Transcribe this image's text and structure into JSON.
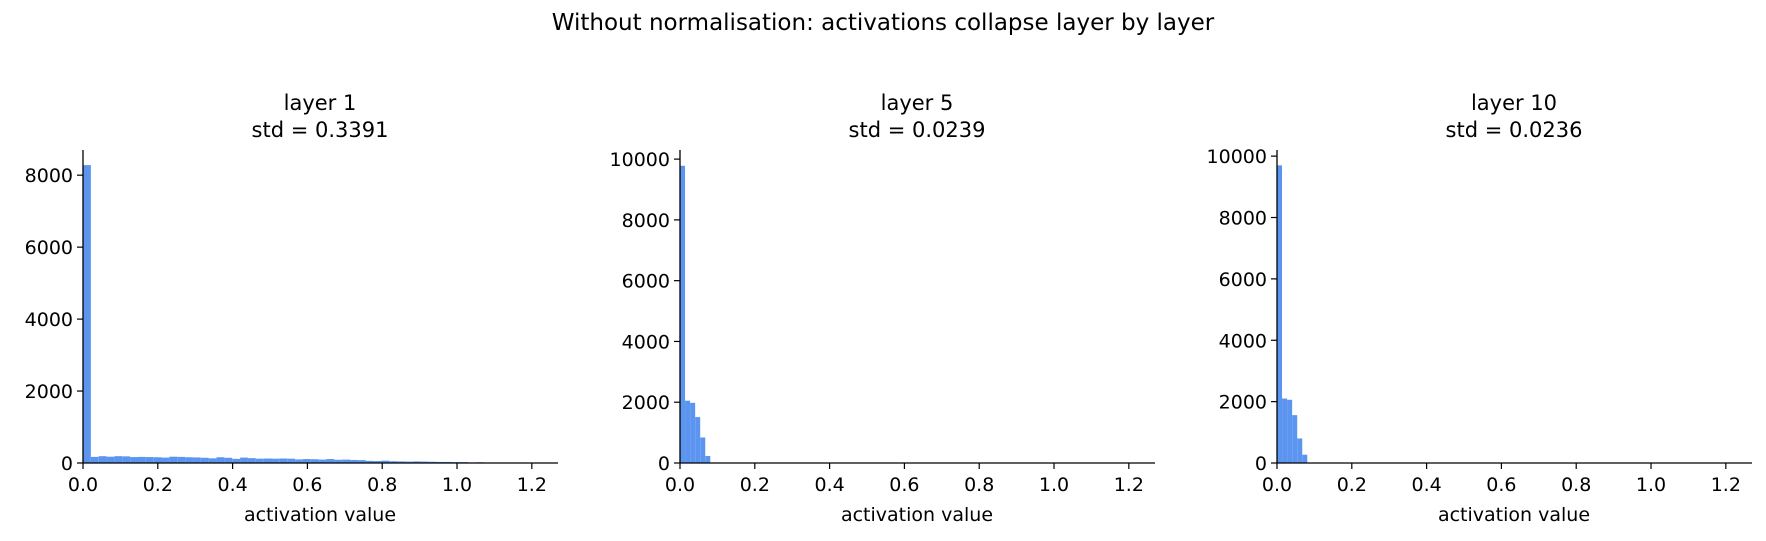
{
  "figure": {
    "title": "Without normalisation: activations collapse layer by layer"
  },
  "colors": {
    "bar": "#5b95f0",
    "axis": "#000000"
  },
  "chart_data": [
    {
      "type": "bar",
      "title": "layer 1\nstd = 0.3391",
      "xlabel": "activation value",
      "ylabel": "",
      "xlim": [
        0.0,
        1.27
      ],
      "ylim": [
        0,
        8700
      ],
      "xticks": [
        "0.0",
        "0.2",
        "0.4",
        "0.6",
        "0.8",
        "1.0",
        "1.2"
      ],
      "yticks": [
        "0",
        "2000",
        "4000",
        "6000",
        "8000"
      ],
      "grid": false,
      "bin_width": 0.021,
      "bin_starts": [
        0.0,
        0.021,
        0.042,
        0.063,
        0.084,
        0.105,
        0.126,
        0.147,
        0.168,
        0.189,
        0.21,
        0.231,
        0.252,
        0.273,
        0.294,
        0.315,
        0.336,
        0.357,
        0.378,
        0.399,
        0.42,
        0.441,
        0.462,
        0.483,
        0.504,
        0.525,
        0.546,
        0.567,
        0.588,
        0.609,
        0.63,
        0.651,
        0.672,
        0.693,
        0.714,
        0.735,
        0.756,
        0.777,
        0.798,
        0.819,
        0.84,
        0.861,
        0.882,
        0.903,
        0.924,
        0.945,
        0.966,
        0.987,
        1.008,
        1.029,
        1.05,
        1.071
      ],
      "values": [
        8280,
        170,
        190,
        175,
        190,
        185,
        165,
        170,
        165,
        160,
        150,
        175,
        170,
        160,
        155,
        145,
        130,
        160,
        145,
        115,
        150,
        135,
        120,
        125,
        120,
        125,
        120,
        100,
        110,
        105,
        95,
        110,
        90,
        95,
        85,
        80,
        60,
        55,
        65,
        50,
        45,
        40,
        45,
        40,
        35,
        30,
        30,
        25,
        25,
        15,
        20,
        12
      ]
    },
    {
      "type": "bar",
      "title": "layer 5\nstd = 0.0239",
      "xlabel": "activation value",
      "ylabel": "",
      "xlim": [
        0.0,
        1.27
      ],
      "ylim": [
        0,
        10300
      ],
      "xticks": [
        "0.0",
        "0.2",
        "0.4",
        "0.6",
        "0.8",
        "1.0",
        "1.2"
      ],
      "yticks": [
        "0",
        "2000",
        "4000",
        "6000",
        "8000",
        "10000"
      ],
      "grid": false,
      "bin_width": 0.0135,
      "bin_starts": [
        0.0,
        0.0135,
        0.027,
        0.0405,
        0.054,
        0.0675,
        0.081
      ],
      "values": [
        9780,
        2050,
        1980,
        1510,
        840,
        230,
        10
      ]
    },
    {
      "type": "bar",
      "title": "layer 10\nstd = 0.0236",
      "xlabel": "activation value",
      "ylabel": "",
      "xlim": [
        0.0,
        1.27
      ],
      "ylim": [
        0,
        10200
      ],
      "xticks": [
        "0.0",
        "0.2",
        "0.4",
        "0.6",
        "0.8",
        "1.0",
        "1.2"
      ],
      "yticks": [
        "0",
        "2000",
        "4000",
        "6000",
        "8000",
        "10000"
      ],
      "grid": false,
      "bin_width": 0.0135,
      "bin_starts": [
        0.0,
        0.0135,
        0.027,
        0.0405,
        0.054,
        0.0675,
        0.081
      ],
      "values": [
        9700,
        2100,
        2060,
        1560,
        800,
        270,
        10
      ]
    }
  ]
}
